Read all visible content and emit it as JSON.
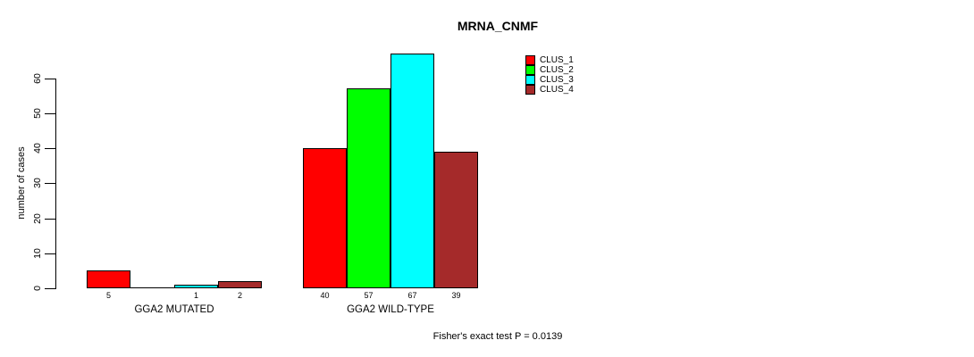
{
  "chart_data": {
    "type": "bar",
    "title": "MRNA_CNMF",
    "ylabel": "number of cases",
    "ylim": [
      0,
      60
    ],
    "yticks": [
      0,
      10,
      20,
      30,
      40,
      50,
      60
    ],
    "categories": [
      "GGA2 MUTATED",
      "GGA2 WILD-TYPE"
    ],
    "series": [
      {
        "name": "CLUS_1",
        "color": "#FF0000",
        "values": [
          5,
          40
        ]
      },
      {
        "name": "CLUS_2",
        "color": "#00FF00",
        "values": [
          0,
          57
        ]
      },
      {
        "name": "CLUS_3",
        "color": "#00FFFF",
        "values": [
          1,
          67
        ]
      },
      {
        "name": "CLUS_4",
        "color": "#A52A2A",
        "values": [
          2,
          39
        ]
      }
    ],
    "bar_value_labels_note": "zero values show no label and render as a flat baseline segment",
    "annotation": "Fisher's exact test P = 0.0139",
    "legend_position": "top-right",
    "grid": "off",
    "axis_color": "#000000",
    "background_color": "#FFFFFF"
  }
}
